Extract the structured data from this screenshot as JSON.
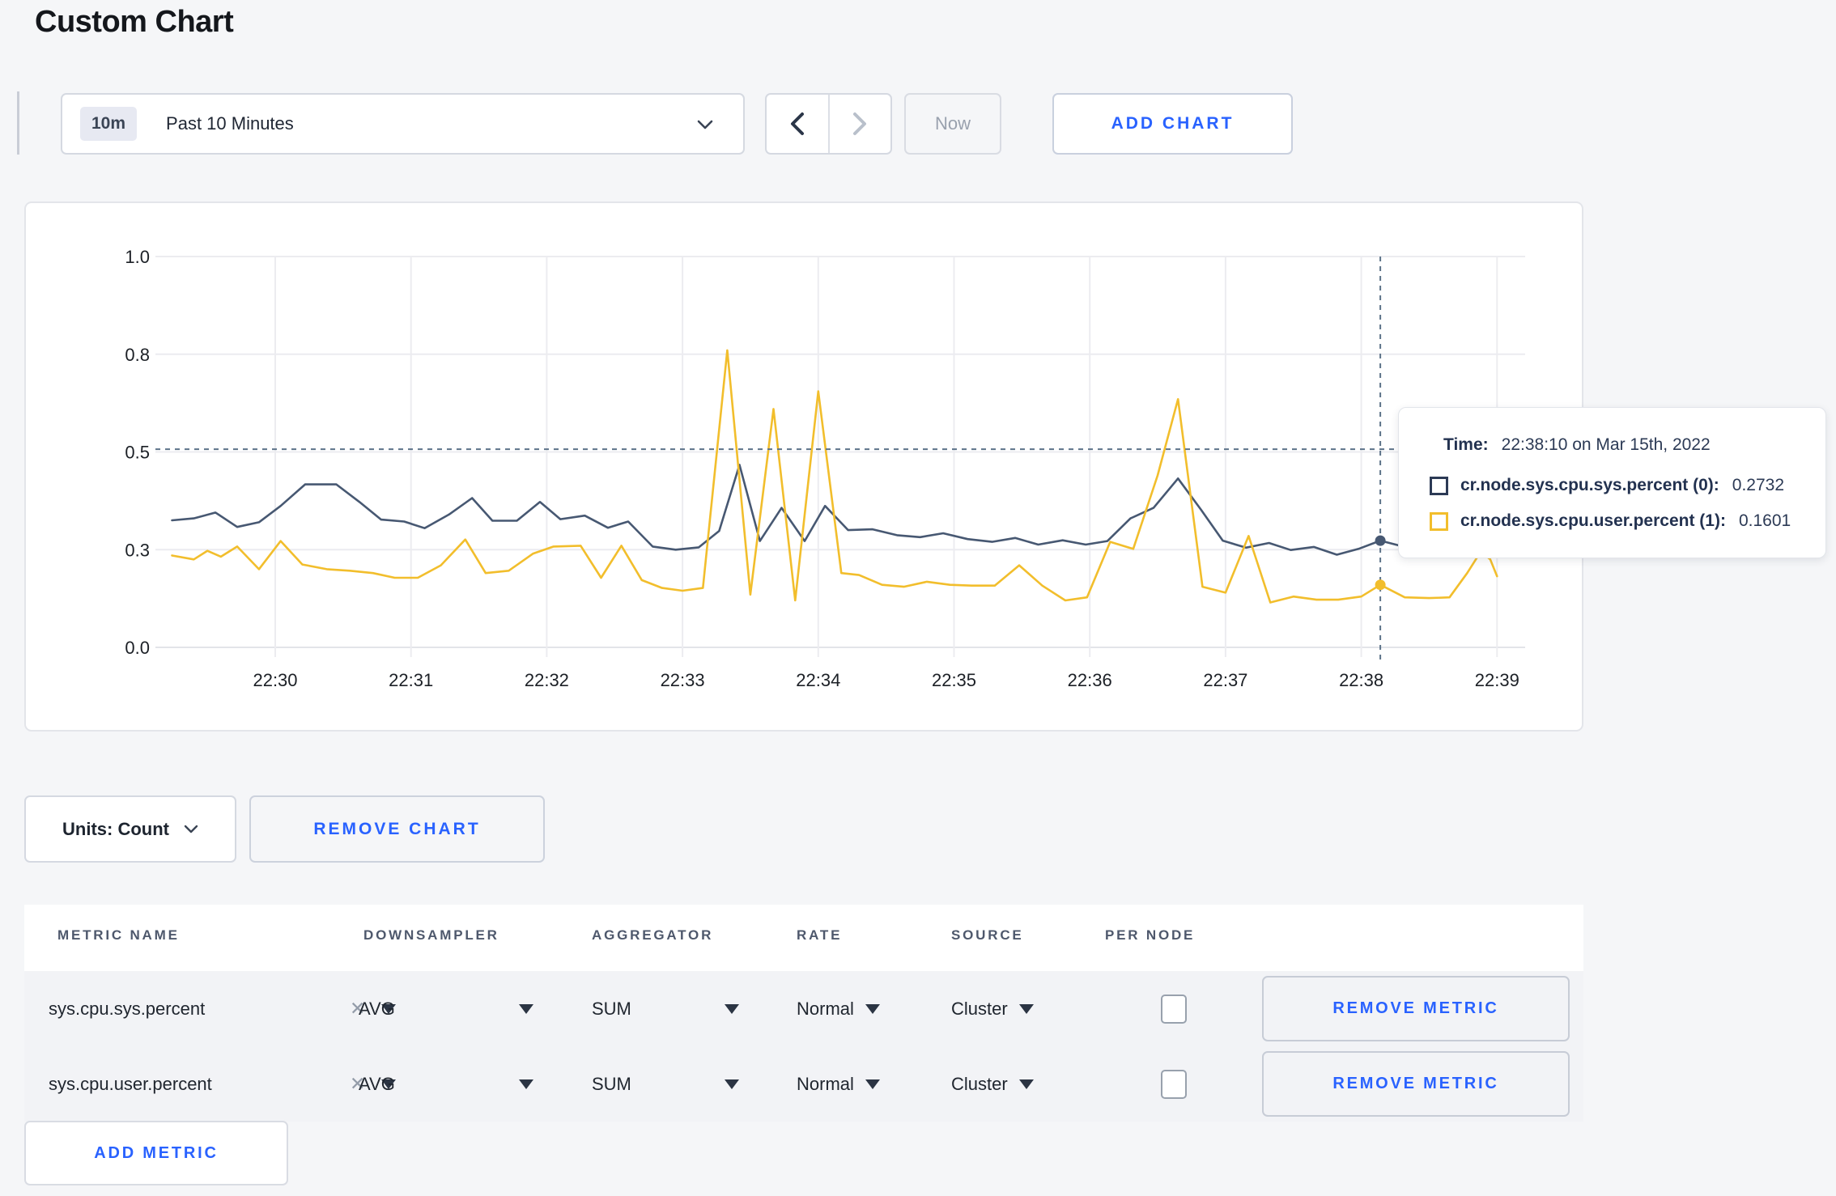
{
  "page": {
    "title": "Custom Chart"
  },
  "toolbar": {
    "time_window_badge": "10m",
    "time_window_label": "Past 10 Minutes",
    "now_label": "Now",
    "add_chart_label": "ADD CHART"
  },
  "tooltip": {
    "time_label": "Time:",
    "time_value": "22:38:10 on Mar 15th, 2022",
    "series": [
      {
        "name": "cr.node.sys.cpu.sys.percent (0):",
        "value": "0.2732",
        "swatch_color": "#2c3a55"
      },
      {
        "name": "cr.node.sys.cpu.user.percent (1):",
        "value": "0.1601",
        "swatch_color": "#f2be2c"
      }
    ]
  },
  "chart_data": {
    "type": "line",
    "title": "",
    "xlabel": "",
    "ylabel": "",
    "ylim": [
      0,
      1
    ],
    "grid": true,
    "x_ticks": [
      "22:30",
      "22:31",
      "22:32",
      "22:33",
      "22:34",
      "22:35",
      "22:36",
      "22:37",
      "22:38",
      "22:39"
    ],
    "y_tick_values": [
      0,
      0.25,
      0.5,
      0.75,
      1.0
    ],
    "y_tick_labels": [
      "0.0",
      "0.3",
      "0.5",
      "0.8",
      "1.0"
    ],
    "series": [
      {
        "name": "cr.node.sys.cpu.sys.percent",
        "color": "#475872",
        "points": [
          [
            -0.76,
            0.325
          ],
          [
            -0.6,
            0.33
          ],
          [
            -0.44,
            0.345
          ],
          [
            -0.28,
            0.308
          ],
          [
            -0.12,
            0.32
          ],
          [
            0.04,
            0.362
          ],
          [
            0.22,
            0.417
          ],
          [
            0.45,
            0.417
          ],
          [
            0.62,
            0.372
          ],
          [
            0.78,
            0.327
          ],
          [
            0.95,
            0.322
          ],
          [
            1.1,
            0.305
          ],
          [
            1.28,
            0.34
          ],
          [
            1.45,
            0.382
          ],
          [
            1.6,
            0.324
          ],
          [
            1.78,
            0.324
          ],
          [
            1.95,
            0.372
          ],
          [
            2.1,
            0.328
          ],
          [
            2.28,
            0.337
          ],
          [
            2.45,
            0.306
          ],
          [
            2.6,
            0.322
          ],
          [
            2.78,
            0.258
          ],
          [
            2.95,
            0.25
          ],
          [
            3.12,
            0.256
          ],
          [
            3.27,
            0.298
          ],
          [
            3.42,
            0.467
          ],
          [
            3.57,
            0.272
          ],
          [
            3.73,
            0.357
          ],
          [
            3.9,
            0.272
          ],
          [
            4.05,
            0.362
          ],
          [
            4.22,
            0.3
          ],
          [
            4.4,
            0.302
          ],
          [
            4.58,
            0.287
          ],
          [
            4.75,
            0.282
          ],
          [
            4.92,
            0.292
          ],
          [
            5.1,
            0.277
          ],
          [
            5.28,
            0.27
          ],
          [
            5.45,
            0.28
          ],
          [
            5.62,
            0.263
          ],
          [
            5.8,
            0.274
          ],
          [
            5.97,
            0.263
          ],
          [
            6.13,
            0.272
          ],
          [
            6.3,
            0.33
          ],
          [
            6.47,
            0.357
          ],
          [
            6.65,
            0.432
          ],
          [
            6.82,
            0.352
          ],
          [
            6.98,
            0.273
          ],
          [
            7.15,
            0.255
          ],
          [
            7.32,
            0.267
          ],
          [
            7.48,
            0.249
          ],
          [
            7.65,
            0.257
          ],
          [
            7.82,
            0.237
          ],
          [
            7.98,
            0.252
          ],
          [
            8.14,
            0.273
          ],
          [
            8.32,
            0.257
          ],
          [
            8.5,
            0.263
          ],
          [
            8.7,
            0.272
          ],
          [
            8.85,
            0.262
          ],
          [
            9,
            0.267
          ]
        ]
      },
      {
        "name": "cr.node.sys.cpu.user.percent",
        "color": "#f2be2c",
        "points": [
          [
            -0.76,
            0.235
          ],
          [
            -0.6,
            0.225
          ],
          [
            -0.5,
            0.247
          ],
          [
            -0.4,
            0.232
          ],
          [
            -0.28,
            0.258
          ],
          [
            -0.12,
            0.2
          ],
          [
            0.04,
            0.272
          ],
          [
            0.2,
            0.212
          ],
          [
            0.38,
            0.2
          ],
          [
            0.55,
            0.196
          ],
          [
            0.72,
            0.19
          ],
          [
            0.88,
            0.178
          ],
          [
            1.05,
            0.178
          ],
          [
            1.22,
            0.21
          ],
          [
            1.4,
            0.276
          ],
          [
            1.55,
            0.19
          ],
          [
            1.72,
            0.196
          ],
          [
            1.9,
            0.24
          ],
          [
            2.05,
            0.258
          ],
          [
            2.25,
            0.26
          ],
          [
            2.4,
            0.178
          ],
          [
            2.55,
            0.26
          ],
          [
            2.7,
            0.172
          ],
          [
            2.85,
            0.152
          ],
          [
            3,
            0.145
          ],
          [
            3.15,
            0.152
          ],
          [
            3.33,
            0.76
          ],
          [
            3.5,
            0.135
          ],
          [
            3.67,
            0.61
          ],
          [
            3.83,
            0.12
          ],
          [
            4,
            0.655
          ],
          [
            4.17,
            0.19
          ],
          [
            4.3,
            0.185
          ],
          [
            4.47,
            0.16
          ],
          [
            4.63,
            0.155
          ],
          [
            4.8,
            0.168
          ],
          [
            4.97,
            0.16
          ],
          [
            5.13,
            0.158
          ],
          [
            5.3,
            0.158
          ],
          [
            5.48,
            0.21
          ],
          [
            5.65,
            0.158
          ],
          [
            5.82,
            0.12
          ],
          [
            5.98,
            0.128
          ],
          [
            6.15,
            0.27
          ],
          [
            6.32,
            0.252
          ],
          [
            6.5,
            0.44
          ],
          [
            6.65,
            0.635
          ],
          [
            6.83,
            0.155
          ],
          [
            7,
            0.14
          ],
          [
            7.17,
            0.285
          ],
          [
            7.33,
            0.115
          ],
          [
            7.5,
            0.13
          ],
          [
            7.67,
            0.122
          ],
          [
            7.83,
            0.122
          ],
          [
            8,
            0.13
          ],
          [
            8.14,
            0.16
          ],
          [
            8.32,
            0.128
          ],
          [
            8.5,
            0.126
          ],
          [
            8.65,
            0.128
          ],
          [
            8.78,
            0.19
          ],
          [
            8.88,
            0.245
          ],
          [
            8.95,
            0.225
          ],
          [
            9,
            0.182
          ]
        ]
      }
    ],
    "crosshair": {
      "x_minutes": 8.14,
      "y_value": 0.507,
      "dot_values": [
        0.273,
        0.1601
      ]
    },
    "legend_position": "tooltip"
  },
  "units_bar": {
    "units_label": "Units: Count",
    "remove_chart_label": "REMOVE CHART"
  },
  "metrics_table": {
    "headers": [
      "METRIC NAME",
      "DOWNSAMPLER",
      "AGGREGATOR",
      "RATE",
      "SOURCE",
      "PER NODE"
    ],
    "rows": [
      {
        "metric": "sys.cpu.sys.percent",
        "downsampler": "AVG",
        "aggregator": "SUM",
        "rate": "Normal",
        "source": "Cluster",
        "per_node_checked": false,
        "remove_label": "REMOVE METRIC"
      },
      {
        "metric": "sys.cpu.user.percent",
        "downsampler": "AVG",
        "aggregator": "SUM",
        "rate": "Normal",
        "source": "Cluster",
        "per_node_checked": false,
        "remove_label": "REMOVE METRIC"
      }
    ],
    "add_metric_label": "ADD METRIC"
  }
}
